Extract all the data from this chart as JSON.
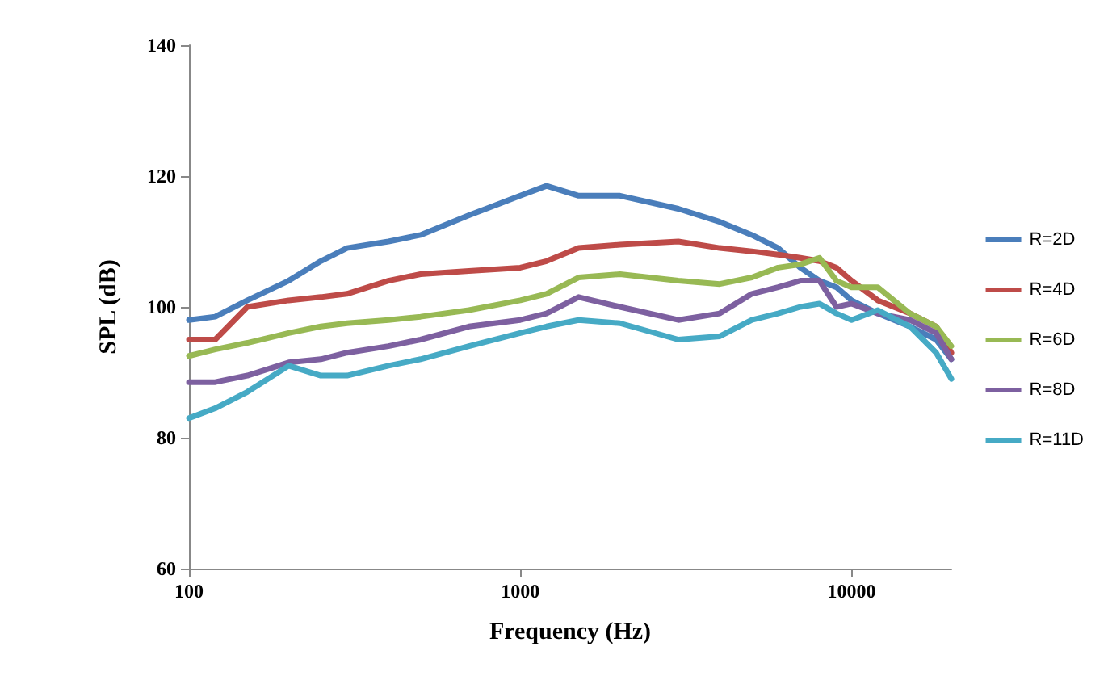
{
  "chart_data": {
    "type": "line",
    "xlabel": "Frequency (Hz)",
    "ylabel": "SPL (dB)",
    "log": "x",
    "xlim": [
      100,
      20000
    ],
    "xticks": [
      100,
      1000,
      10000
    ],
    "ylim": [
      60,
      140
    ],
    "yticks": [
      60,
      80,
      100,
      120,
      140
    ],
    "grid": false,
    "legend": "right",
    "marker": "none",
    "line_style": "solid",
    "x": [
      100,
      120,
      150,
      200,
      250,
      300,
      400,
      500,
      700,
      1000,
      1200,
      1500,
      2000,
      3000,
      4000,
      5000,
      6000,
      7000,
      8000,
      9000,
      10000,
      12000,
      15000,
      18000,
      20000
    ],
    "series": [
      {
        "name": "R=2D",
        "color": "#4a7ebb",
        "values": [
          98,
          98.5,
          101,
          104,
          107,
          109,
          110,
          111,
          114,
          117,
          118.5,
          117,
          117,
          115,
          113,
          111,
          109,
          106,
          104,
          103,
          101,
          99,
          97,
          95,
          92
        ]
      },
      {
        "name": "R=4D",
        "color": "#be4b48",
        "values": [
          95,
          95,
          100,
          101,
          101.5,
          102,
          104,
          105,
          105.5,
          106,
          107,
          109,
          109.5,
          110,
          109,
          108.5,
          108,
          107.5,
          107,
          106,
          104,
          101,
          99,
          97,
          93
        ]
      },
      {
        "name": "R=6D",
        "color": "#98b954",
        "values": [
          92.5,
          93.5,
          94.5,
          96,
          97,
          97.5,
          98,
          98.5,
          99.5,
          101,
          102,
          104.5,
          105,
          104,
          103.5,
          104.5,
          106,
          106.5,
          107.5,
          104,
          103,
          103,
          99,
          97,
          94
        ]
      },
      {
        "name": "R=8D",
        "color": "#7d60a0",
        "values": [
          88.5,
          88.5,
          89.5,
          91.5,
          92,
          93,
          94,
          95,
          97,
          98,
          99,
          101.5,
          100,
          98,
          99,
          102,
          103,
          104,
          104,
          100,
          100.5,
          99,
          98,
          96,
          92
        ]
      },
      {
        "name": "R=11D",
        "color": "#46aac5",
        "values": [
          83,
          84.5,
          87,
          91,
          89.5,
          89.5,
          91,
          92,
          94,
          96,
          97,
          98,
          97.5,
          95,
          95.5,
          98,
          99,
          100,
          100.5,
          99,
          98,
          99.5,
          97,
          93,
          89
        ]
      }
    ]
  }
}
